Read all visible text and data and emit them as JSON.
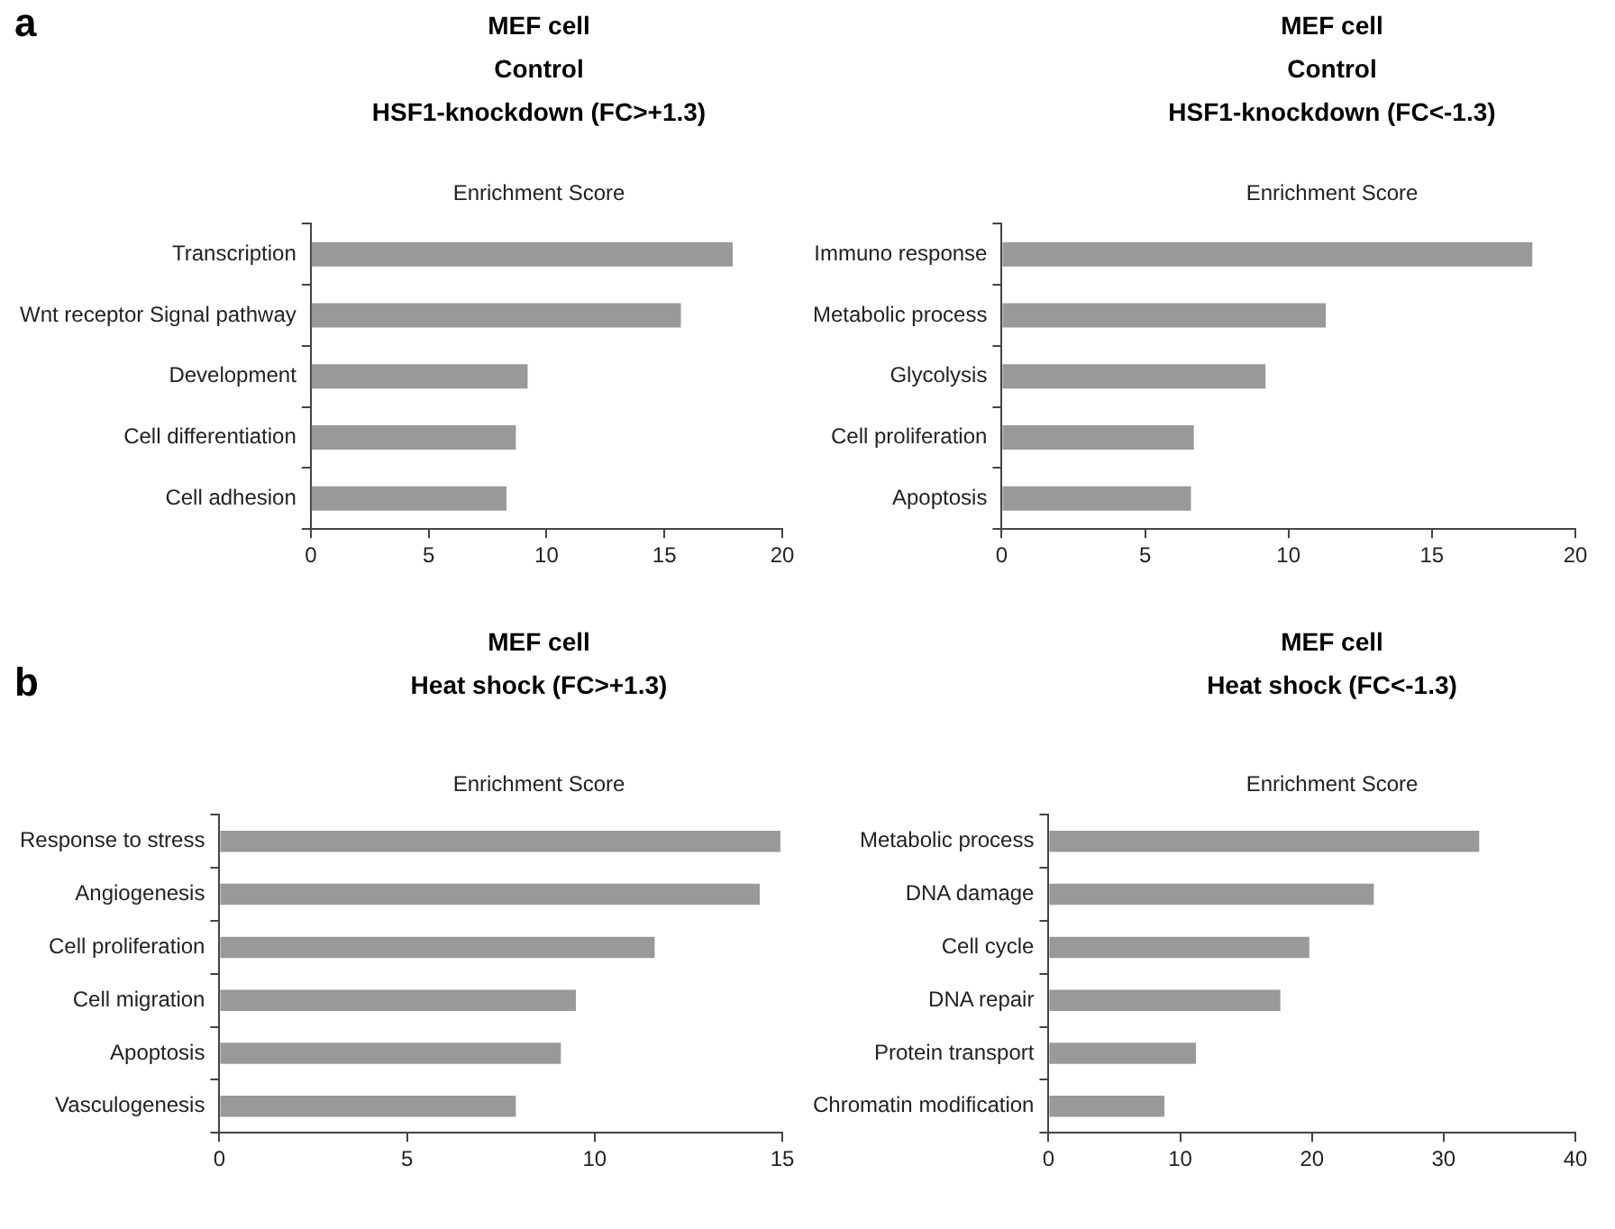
{
  "chart_data": [
    {
      "type": "bar",
      "orientation": "horizontal",
      "title": "MEF cell\nControl\nHSF1-knockdown (FC>+1.3)",
      "xlabel": "Enrichment Score",
      "annotations": [
        "a"
      ],
      "categories": [
        "Transcription",
        "Wnt receptor Signal pathway",
        "Development",
        "Cell differentiation",
        "Cell adhesion"
      ],
      "values": [
        17.9,
        15.7,
        9.2,
        8.7,
        8.3
      ],
      "color": "#999999",
      "xlim": [
        0,
        20
      ],
      "xticks": [
        0,
        5,
        10,
        15,
        20
      ]
    },
    {
      "type": "bar",
      "orientation": "horizontal",
      "title": "MEF cell\nControl\nHSF1-knockdown (FC<-1.3)",
      "xlabel": "Enrichment Score",
      "categories": [
        "Immuno response",
        "Metabolic process",
        "Glycolysis",
        "Cell proliferation",
        "Apoptosis"
      ],
      "values": [
        18.5,
        11.3,
        9.2,
        6.7,
        6.6
      ],
      "color": "#999999",
      "xlim": [
        0,
        20
      ],
      "xticks": [
        0,
        5,
        10,
        15,
        20
      ]
    },
    {
      "type": "bar",
      "orientation": "horizontal",
      "title": "MEF cell\nHeat shock (FC>+1.3)",
      "xlabel": "Enrichment Score",
      "annotations": [
        "b"
      ],
      "categories": [
        "Response to stress",
        "Angiogenesis",
        "Cell proliferation",
        "Cell migration",
        "Apoptosis",
        "Vasculogenesis"
      ],
      "values": [
        14.95,
        14.4,
        11.6,
        9.5,
        9.1,
        7.9
      ],
      "color": "#999999",
      "xlim": [
        0,
        15
      ],
      "xticks": [
        0,
        5,
        10,
        15
      ]
    },
    {
      "type": "bar",
      "orientation": "horizontal",
      "title": "MEF cell\nHeat shock (FC<-1.3)",
      "xlabel": "Enrichment Score",
      "categories": [
        "Metabolic process",
        "DNA damage",
        "Cell cycle",
        "DNA repair",
        "Protein transport",
        "Chromatin modification"
      ],
      "values": [
        32.7,
        24.7,
        19.8,
        17.6,
        11.2,
        8.8
      ],
      "color": "#999999",
      "xlim": [
        0,
        40
      ],
      "xticks": [
        0,
        10,
        20,
        30,
        40
      ]
    }
  ]
}
